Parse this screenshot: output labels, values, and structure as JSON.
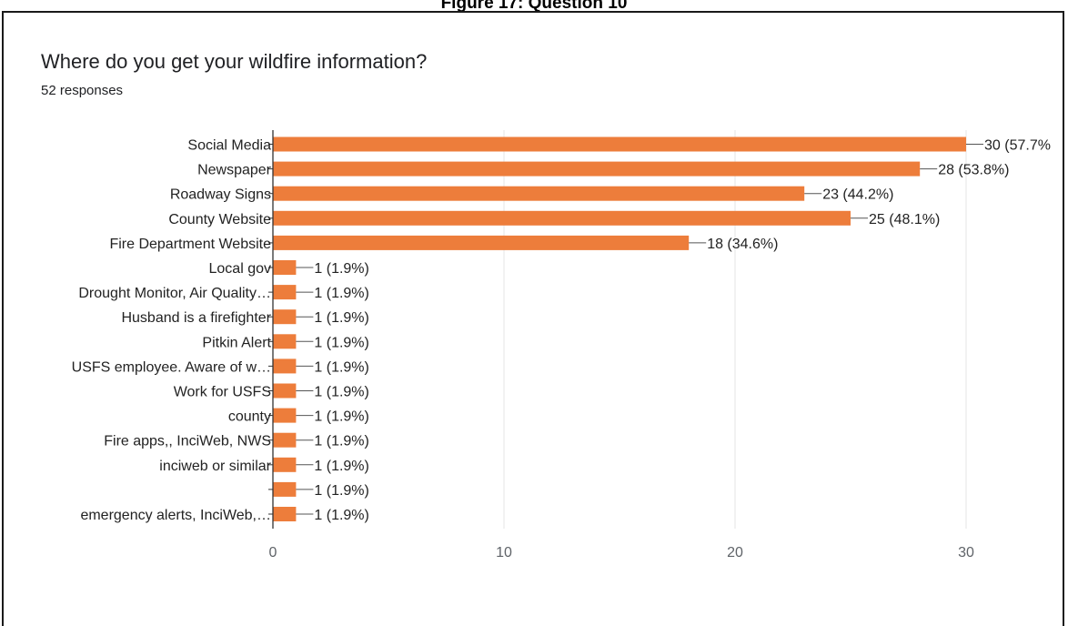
{
  "figure_caption": "Figure 17: Question 10",
  "chart_data": {
    "type": "bar",
    "orientation": "horizontal",
    "title": "Where do you get your wildfire information?",
    "subtitle": "52 responses",
    "categories": [
      "Social Media",
      "Newspaper",
      "Roadway Signs",
      "County Website",
      "Fire Department Website",
      "Local gov",
      "Drought Monitor, Air Quality…",
      "Husband is a firefighter",
      "Pitkin Alert",
      "USFS employee. Aware of w…",
      "Work for USFS",
      "county",
      "Fire apps,, InciWeb, NWS",
      "inciweb or similar",
      "",
      "emergency alerts, InciWeb,…"
    ],
    "values": [
      30,
      28,
      23,
      25,
      18,
      1,
      1,
      1,
      1,
      1,
      1,
      1,
      1,
      1,
      1,
      1
    ],
    "data_labels": [
      "30 (57.7%",
      "28 (53.8%)",
      "23 (44.2%)",
      "25 (48.1%)",
      "18 (34.6%)",
      "1 (1.9%)",
      "1 (1.9%)",
      "1 (1.9%)",
      "1 (1.9%)",
      "1 (1.9%)",
      "1 (1.9%)",
      "1 (1.9%)",
      "1 (1.9%)",
      "1 (1.9%)",
      "1 (1.9%)",
      "1 (1.9%)"
    ],
    "xlim": [
      0,
      30
    ],
    "xticks": [
      0,
      10,
      20,
      30
    ],
    "grid": "vertical",
    "bar_color": "#ed7d3b",
    "grid_color": "#e6e6e6",
    "axis_color": "#333333",
    "text_color": "#222222"
  }
}
